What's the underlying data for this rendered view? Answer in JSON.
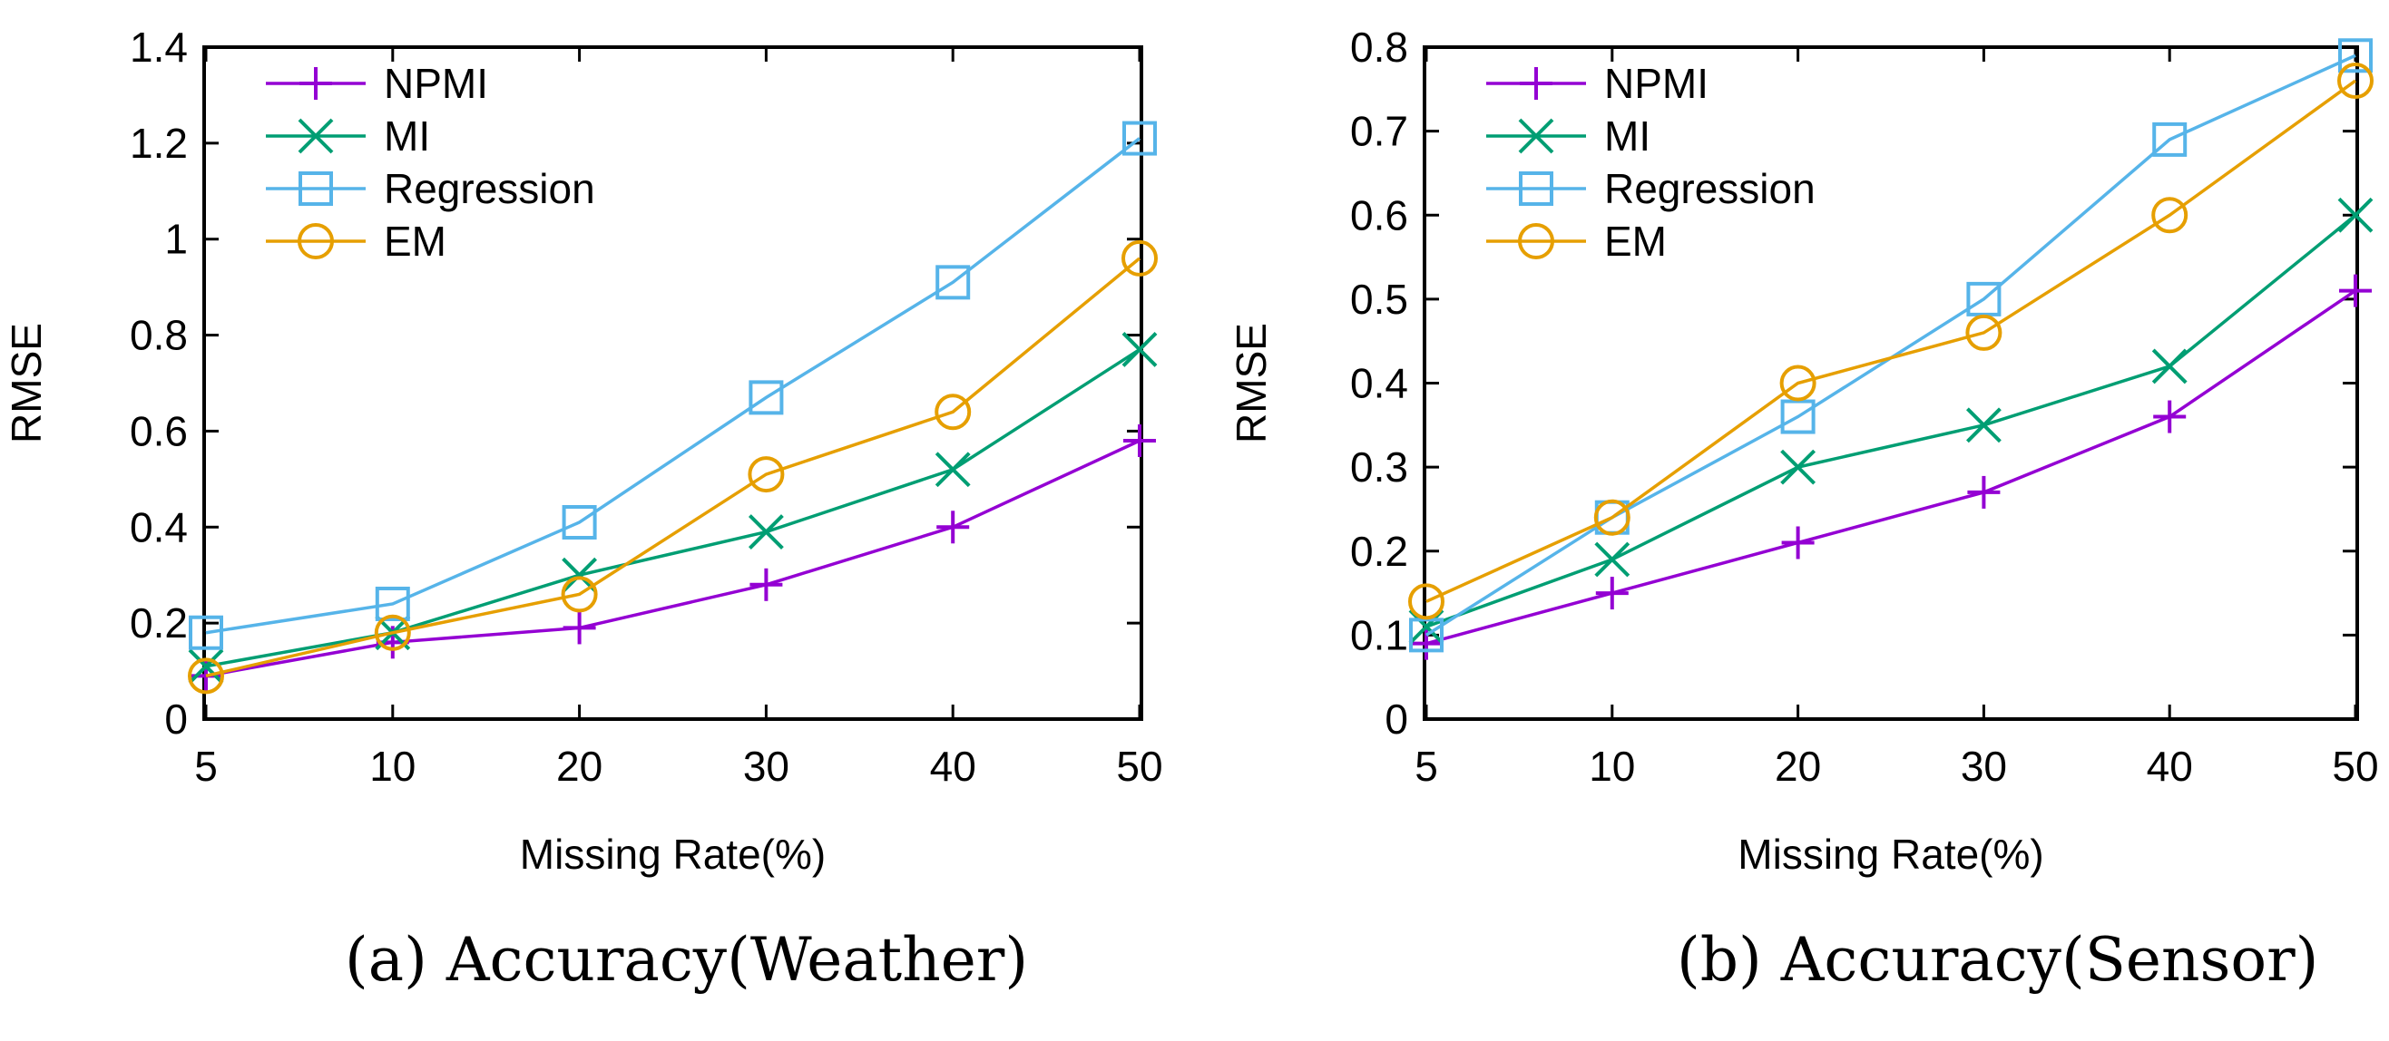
{
  "colors": {
    "NPMI": "#9400d3",
    "MI": "#009e73",
    "Regression": "#56b4e9",
    "EM": "#e69f00"
  },
  "chart_data": [
    {
      "type": "line",
      "caption": "(a) Accuracy(Weather)",
      "xlabel": "Missing Rate(%)",
      "ylabel": "RMSE",
      "categories": [
        "5",
        "10",
        "20",
        "30",
        "40",
        "50"
      ],
      "ylim": [
        0,
        1.4
      ],
      "yticks": [
        "0",
        "0.2",
        "0.4",
        "0.6",
        "0.8",
        "1",
        "1.2",
        "1.4"
      ],
      "legend_position": "top-left",
      "series": [
        {
          "name": "NPMI",
          "marker": "plus",
          "values": [
            0.09,
            0.16,
            0.19,
            0.28,
            0.4,
            0.58
          ]
        },
        {
          "name": "MI",
          "marker": "cross",
          "values": [
            0.11,
            0.18,
            0.3,
            0.39,
            0.52,
            0.77
          ]
        },
        {
          "name": "Regression",
          "marker": "square",
          "values": [
            0.18,
            0.24,
            0.41,
            0.67,
            0.91,
            1.21
          ]
        },
        {
          "name": "EM",
          "marker": "circle",
          "values": [
            0.09,
            0.18,
            0.26,
            0.51,
            0.64,
            0.96
          ]
        }
      ]
    },
    {
      "type": "line",
      "caption": "(b) Accuracy(Sensor)",
      "xlabel": "Missing Rate(%)",
      "ylabel": "RMSE",
      "categories": [
        "5",
        "10",
        "20",
        "30",
        "40",
        "50"
      ],
      "ylim": [
        0,
        0.8
      ],
      "yticks": [
        "0",
        "0.1",
        "0.2",
        "0.3",
        "0.4",
        "0.5",
        "0.6",
        "0.7",
        "0.8"
      ],
      "legend_position": "top-left",
      "series": [
        {
          "name": "NPMI",
          "marker": "plus",
          "values": [
            0.09,
            0.15,
            0.21,
            0.27,
            0.36,
            0.51
          ]
        },
        {
          "name": "MI",
          "marker": "cross",
          "values": [
            0.11,
            0.19,
            0.3,
            0.35,
            0.42,
            0.6
          ]
        },
        {
          "name": "Regression",
          "marker": "square",
          "values": [
            0.1,
            0.24,
            0.36,
            0.5,
            0.69,
            0.79
          ]
        },
        {
          "name": "EM",
          "marker": "circle",
          "values": [
            0.14,
            0.24,
            0.4,
            0.46,
            0.6,
            0.76
          ]
        }
      ]
    }
  ]
}
